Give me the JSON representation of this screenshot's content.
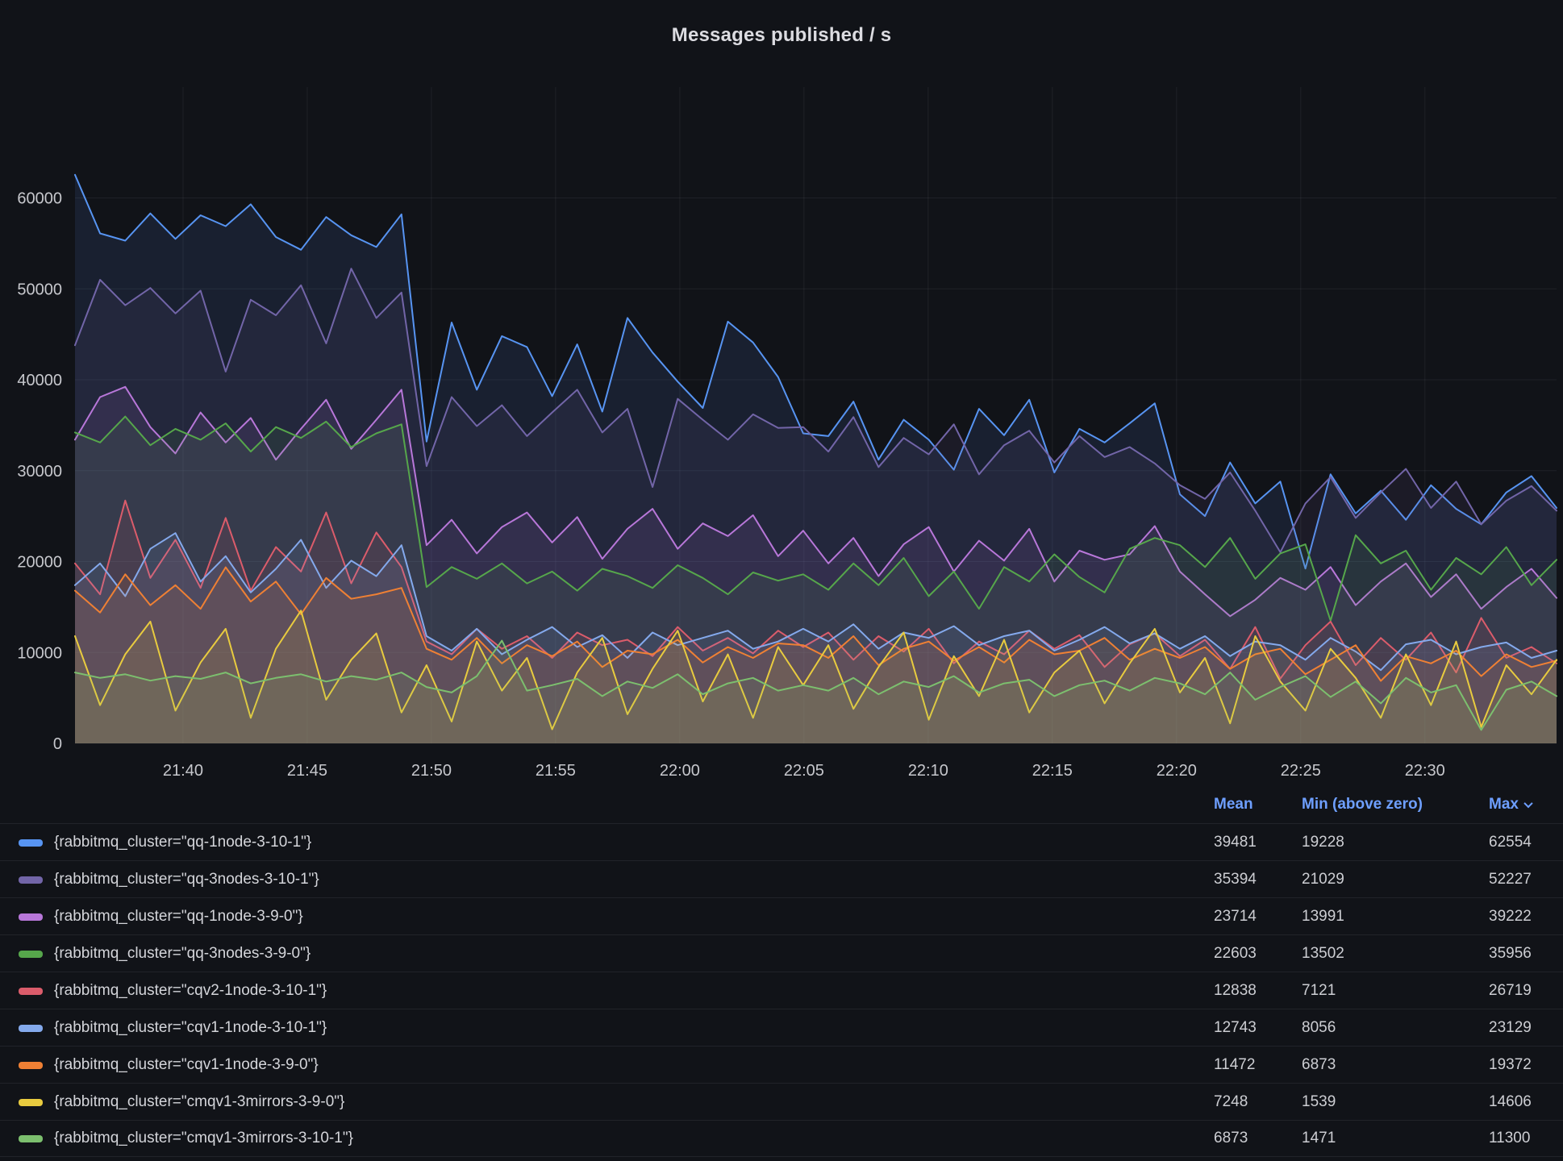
{
  "panel": {
    "title": "Messages published / s"
  },
  "legend": {
    "columns": [
      "Mean",
      "Min (above zero)",
      "Max"
    ],
    "sorted_by": "Max",
    "sort_direction": "desc"
  },
  "chart_data": {
    "type": "line",
    "title": "Messages published / s",
    "grid": true,
    "legend_position": "bottom-table",
    "background": "#111318",
    "x_axis": {
      "start_label": "21:36",
      "end_label": "22:35",
      "total_minutes": 59.65,
      "ticks": [
        {
          "minute": 4.35,
          "label": "21:40"
        },
        {
          "minute": 9.35,
          "label": "21:45"
        },
        {
          "minute": 14.35,
          "label": "21:50"
        },
        {
          "minute": 19.35,
          "label": "21:55"
        },
        {
          "minute": 24.35,
          "label": "22:00"
        },
        {
          "minute": 29.35,
          "label": "22:05"
        },
        {
          "minute": 34.35,
          "label": "22:10"
        },
        {
          "minute": 39.35,
          "label": "22:15"
        },
        {
          "minute": 44.35,
          "label": "22:20"
        },
        {
          "minute": 49.35,
          "label": "22:25"
        },
        {
          "minute": 54.35,
          "label": "22:30"
        }
      ]
    },
    "y_axis": {
      "ticks": [
        0,
        10000,
        20000,
        30000,
        40000,
        50000,
        60000
      ],
      "ylim": [
        0,
        72200
      ]
    },
    "line_width": 2,
    "fill_opacity": 0.11,
    "series": [
      {
        "name": "{rabbitmq_cluster=\"qq-1node-3-10-1\"}",
        "color": "#5794F2",
        "mean": "39481",
        "min_above_zero": "19228",
        "max": "62554",
        "values": [
          62554,
          56100,
          55300,
          58300,
          55500,
          58100,
          56900,
          59300,
          55700,
          54300,
          57900,
          55900,
          54600,
          58200,
          33200,
          46300,
          38900,
          44800,
          43600,
          38200,
          43900,
          36500,
          46800,
          43000,
          39800,
          36900,
          46400,
          44100,
          40300,
          34100,
          33800,
          37600,
          31200,
          35600,
          33400,
          30100,
          36800,
          33900,
          37800,
          29800,
          34600,
          33100,
          35200,
          37400,
          27400,
          25000,
          30900,
          26400,
          28800,
          19228,
          29600,
          25300,
          27800,
          24600,
          28400,
          25800,
          24100,
          27600,
          29400,
          25900
        ]
      },
      {
        "name": "{rabbitmq_cluster=\"qq-3nodes-3-10-1\"}",
        "color": "#7265A8",
        "mean": "35394",
        "min_above_zero": "21029",
        "max": "52227",
        "values": [
          43800,
          51000,
          48200,
          50100,
          47300,
          49800,
          40900,
          48800,
          47100,
          50400,
          44000,
          52227,
          46800,
          49600,
          30500,
          38100,
          34900,
          37200,
          33800,
          36400,
          38900,
          34200,
          36800,
          28200,
          37900,
          35600,
          33400,
          36200,
          34700,
          34800,
          32100,
          35900,
          30400,
          33600,
          31800,
          35100,
          29600,
          32800,
          34400,
          30900,
          33800,
          31500,
          32600,
          30800,
          28400,
          26900,
          29800,
          25600,
          21029,
          26400,
          29300,
          24800,
          27600,
          30200,
          25900,
          28800,
          24100,
          26700,
          28300,
          25600
        ]
      },
      {
        "name": "{rabbitmq_cluster=\"qq-1node-3-9-0\"}",
        "color": "#B877D9",
        "mean": "23714",
        "min_above_zero": "13991",
        "max": "39222",
        "values": [
          33400,
          38100,
          39222,
          34800,
          31900,
          36400,
          33100,
          35800,
          31200,
          34600,
          37800,
          32400,
          35600,
          38900,
          21800,
          24600,
          20900,
          23800,
          25400,
          22100,
          24900,
          20300,
          23600,
          25800,
          21400,
          24200,
          22800,
          25100,
          20600,
          23400,
          19800,
          22600,
          18400,
          21900,
          23800,
          18900,
          22300,
          20100,
          23600,
          17800,
          21200,
          20200,
          20800,
          23900,
          18900,
          16400,
          13991,
          15800,
          18200,
          16900,
          19400,
          15200,
          17800,
          19800,
          16100,
          18600,
          14800,
          17200,
          19200,
          16000
        ]
      },
      {
        "name": "{rabbitmq_cluster=\"qq-3nodes-3-9-0\"}",
        "color": "#56A64B",
        "mean": "22603",
        "min_above_zero": "13502",
        "max": "35956",
        "values": [
          34200,
          33100,
          35956,
          32800,
          34600,
          33400,
          35200,
          32100,
          34800,
          33600,
          35400,
          32600,
          34100,
          35100,
          17200,
          19400,
          18100,
          19800,
          17600,
          18900,
          16800,
          19200,
          18400,
          17100,
          19600,
          18200,
          16400,
          18800,
          17900,
          18600,
          16900,
          19800,
          17400,
          20400,
          16200,
          18900,
          14800,
          19400,
          17800,
          20800,
          18300,
          16600,
          21400,
          22600,
          21800,
          19400,
          22600,
          18100,
          20900,
          21900,
          13502,
          22900,
          19800,
          21200,
          16900,
          20400,
          18600,
          21600,
          17400,
          20200
        ]
      },
      {
        "name": "{rabbitmq_cluster=\"cqv2-1node-3-10-1\"}",
        "color": "#DB5C6B",
        "mean": "12838",
        "min_above_zero": "7121",
        "max": "26719",
        "values": [
          19800,
          16400,
          26719,
          18200,
          22400,
          17100,
          24800,
          16800,
          21600,
          18900,
          25400,
          17600,
          23200,
          19400,
          11200,
          9800,
          12600,
          10400,
          11800,
          9400,
          12200,
          10800,
          11400,
          9600,
          12800,
          10200,
          11600,
          9900,
          12400,
          10600,
          12200,
          9200,
          11800,
          10100,
          12600,
          8800,
          11200,
          9800,
          12400,
          10400,
          11900,
          8400,
          10900,
          12100,
          9600,
          11400,
          8200,
          12800,
          7121,
          10800,
          13400,
          8600,
          11600,
          9200,
          12200,
          7800,
          13800,
          9400,
          10600,
          8800
        ]
      },
      {
        "name": "{rabbitmq_cluster=\"cqv1-1node-3-10-1\"}",
        "color": "#84A9EC",
        "mean": "12743",
        "min_above_zero": "8056",
        "max": "23129",
        "values": [
          17400,
          19800,
          16200,
          21400,
          23129,
          17800,
          20600,
          16600,
          19200,
          22400,
          17100,
          20100,
          18400,
          21800,
          11800,
          10200,
          12600,
          9800,
          11400,
          12800,
          10600,
          11900,
          9400,
          12200,
          10800,
          11600,
          12400,
          10400,
          11200,
          12600,
          11200,
          13100,
          10400,
          12200,
          11600,
          12900,
          10800,
          11800,
          12400,
          10200,
          11400,
          12800,
          11000,
          12100,
          10400,
          11800,
          9600,
          11200,
          10800,
          9200,
          11600,
          10100,
          8056,
          10900,
          11400,
          9800,
          10600,
          11100,
          9400,
          10200
        ]
      },
      {
        "name": "{rabbitmq_cluster=\"cqv1-1node-3-9-0\"}",
        "color": "#EF8034",
        "mean": "11472",
        "min_above_zero": "6873",
        "max": "19372",
        "values": [
          16800,
          14400,
          18600,
          15200,
          17400,
          14800,
          19372,
          15600,
          17800,
          14200,
          18200,
          15900,
          16400,
          17100,
          10400,
          9200,
          11600,
          8800,
          10800,
          9600,
          11200,
          8400,
          10200,
          9800,
          11400,
          8900,
          10600,
          9400,
          11000,
          10800,
          9400,
          11800,
          8600,
          10400,
          11200,
          9100,
          10600,
          8900,
          11400,
          9800,
          10200,
          11600,
          9200,
          10400,
          9400,
          10600,
          8200,
          9800,
          10400,
          7600,
          9200,
          10800,
          6873,
          9600,
          8800,
          10200,
          7400,
          9800,
          8400,
          9100
        ]
      },
      {
        "name": "{rabbitmq_cluster=\"cmqv1-3mirrors-3-9-0\"}",
        "color": "#E8CB3F",
        "mean": "7248",
        "min_above_zero": "1539",
        "max": "14606",
        "values": [
          11800,
          4200,
          9800,
          13400,
          3600,
          8900,
          12600,
          2800,
          10400,
          14606,
          4800,
          9200,
          12100,
          3400,
          8600,
          2400,
          11200,
          5800,
          9400,
          1539,
          7800,
          11600,
          3200,
          8200,
          12400,
          4600,
          9800,
          2800,
          10600,
          6400,
          10800,
          3800,
          8400,
          12200,
          2600,
          9600,
          5200,
          11400,
          3400,
          7800,
          10200,
          4400,
          8800,
          12600,
          5600,
          9400,
          2200,
          11800,
          6800,
          3600,
          10400,
          7200,
          2800,
          9800,
          4200,
          11200,
          1800,
          8600,
          5400,
          9200
        ]
      },
      {
        "name": "{rabbitmq_cluster=\"cmqv1-3mirrors-3-10-1\"}",
        "color": "#7CBF6E",
        "mean": "6873",
        "min_above_zero": "1471",
        "max": "11300",
        "values": [
          7800,
          7200,
          7600,
          6900,
          7400,
          7100,
          7800,
          6600,
          7200,
          7600,
          6800,
          7400,
          7000,
          7800,
          6200,
          5600,
          7400,
          11300,
          5800,
          6400,
          7100,
          5200,
          6800,
          6100,
          7600,
          5400,
          6600,
          7200,
          5800,
          6400,
          5800,
          7200,
          5400,
          6800,
          6200,
          7400,
          5600,
          6600,
          7000,
          5200,
          6400,
          6900,
          5800,
          7200,
          6600,
          5400,
          7800,
          4800,
          6200,
          7400,
          5100,
          6800,
          4400,
          7200,
          5600,
          6400,
          1471,
          5900,
          6800,
          5200
        ]
      }
    ]
  }
}
